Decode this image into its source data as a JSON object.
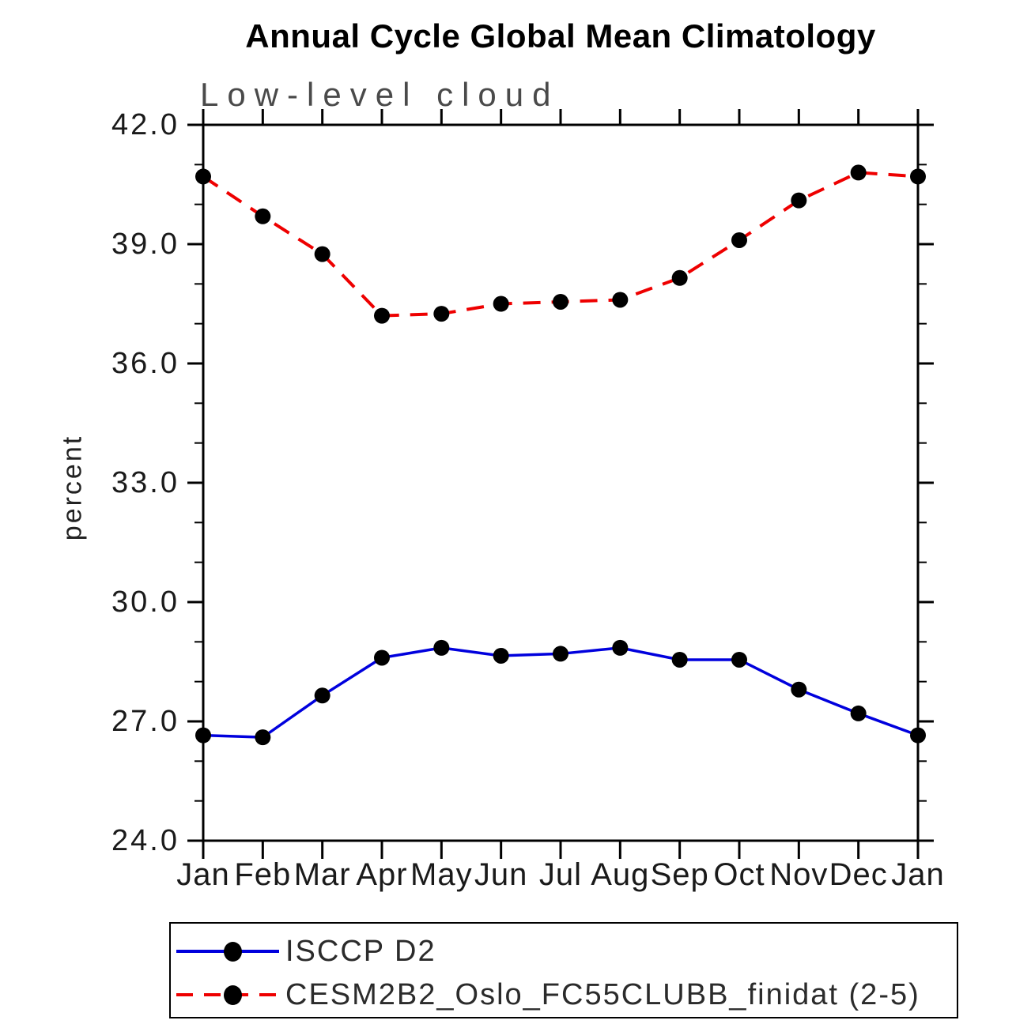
{
  "chart_data": {
    "type": "line",
    "title": "Annual Cycle Global Mean Climatology",
    "subtitle": "Low-level cloud",
    "ylabel": "percent",
    "xlabel": "",
    "categories": [
      "Jan",
      "Feb",
      "Mar",
      "Apr",
      "May",
      "Jun",
      "Jul",
      "Aug",
      "Sep",
      "Oct",
      "Nov",
      "Dec",
      "Jan"
    ],
    "ylim": [
      24.0,
      42.0
    ],
    "y_major_ticks": [
      24.0,
      27.0,
      30.0,
      33.0,
      36.0,
      39.0,
      42.0
    ],
    "y_tick_labels": [
      "24.0",
      "27.0",
      "30.0",
      "33.0",
      "36.0",
      "39.0",
      "42.0"
    ],
    "y_minor_tick_step": 1.0,
    "grid": false,
    "frame": "box",
    "legend_position": "below-left",
    "marker_color": "#000000",
    "series": [
      {
        "name": "ISCCP D2",
        "color": "#0000dd",
        "line_style": "solid",
        "marker": "circle",
        "values": [
          26.65,
          26.6,
          27.65,
          28.6,
          28.85,
          28.65,
          28.7,
          28.85,
          28.55,
          28.55,
          27.8,
          27.2,
          26.65
        ]
      },
      {
        "name": "CESM2B2_Oslo_FC55CLUBB_finidat (2-5)",
        "color": "#ee0000",
        "line_style": "dashed",
        "marker": "circle",
        "values": [
          40.7,
          39.7,
          38.75,
          37.2,
          37.25,
          37.5,
          37.55,
          37.6,
          38.15,
          39.1,
          40.1,
          40.8,
          40.7
        ]
      }
    ]
  }
}
